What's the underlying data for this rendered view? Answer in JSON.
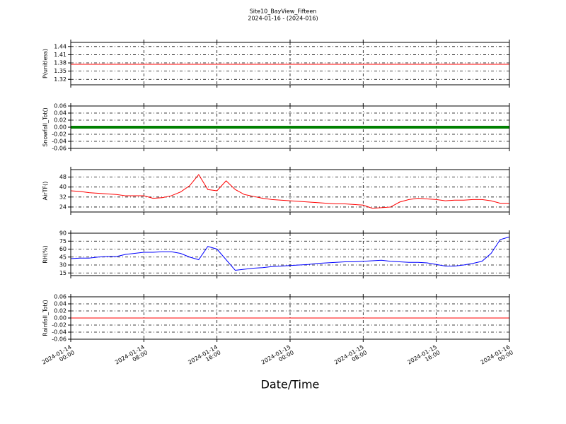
{
  "title": "Site10_BayView_Fifteen",
  "subtitle": "2024-01-16 - (2024-016)",
  "shared_x": {
    "label": "Date/Time",
    "xlim": [
      "2024-01-14 00:00",
      "2024-01-16 00:00"
    ],
    "xticks": [
      {
        "value": "2024-01-14 00:00",
        "label": "2024-01-14\n00:00"
      },
      {
        "value": "2024-01-14 08:00",
        "label": "2024-01-14\n08:00"
      },
      {
        "value": "2024-01-14 16:00",
        "label": "2024-01-14\n16:00"
      },
      {
        "value": "2024-01-15 00:00",
        "label": "2024-01-15\n00:00"
      },
      {
        "value": "2024-01-15 08:00",
        "label": "2024-01-15\n08:00"
      },
      {
        "value": "2024-01-15 16:00",
        "label": "2024-01-15\n16:00"
      },
      {
        "value": "2024-01-16 00:00",
        "label": "2024-01-16\n00:00"
      }
    ]
  },
  "chart_data": [
    {
      "type": "line",
      "ylabel": "P(unitless)",
      "x": [
        "2024-01-14 00:00",
        "2024-01-16 00:00"
      ],
      "series": [
        {
          "color": "#ff0000",
          "width": 1,
          "values": [
            1.375,
            1.375
          ]
        }
      ],
      "ylim": [
        1.3,
        1.455
      ],
      "yticks": [
        1.32,
        1.35,
        1.38,
        1.41,
        1.44
      ],
      "grid": true
    },
    {
      "type": "line",
      "ylabel": "Snowfall_Tot()",
      "x": [
        "2024-01-14 00:00",
        "2024-01-16 00:00"
      ],
      "series": [
        {
          "color": "#008000",
          "width": 4,
          "values": [
            0,
            0
          ]
        }
      ],
      "ylim": [
        -0.06,
        0.06
      ],
      "yticks": [
        -0.06,
        -0.04,
        -0.02,
        {
          "value": 0,
          "label": "0.00"
        },
        0.02,
        0.04,
        0.06
      ],
      "grid": true
    },
    {
      "type": "line",
      "ylabel": "AirTF()",
      "x": [
        "2024-01-14 00:00",
        "2024-01-14 01:00",
        "2024-01-14 02:00",
        "2024-01-14 03:00",
        "2024-01-14 04:00",
        "2024-01-14 05:00",
        "2024-01-14 06:00",
        "2024-01-14 07:00",
        "2024-01-14 08:00",
        "2024-01-14 09:00",
        "2024-01-14 10:00",
        "2024-01-14 11:00",
        "2024-01-14 12:00",
        "2024-01-14 13:00",
        "2024-01-14 14:00",
        "2024-01-14 15:00",
        "2024-01-14 16:00",
        "2024-01-14 17:00",
        "2024-01-14 18:00",
        "2024-01-14 19:00",
        "2024-01-14 20:00",
        "2024-01-14 21:00",
        "2024-01-14 22:00",
        "2024-01-14 23:00",
        "2024-01-15 00:00",
        "2024-01-15 01:00",
        "2024-01-15 02:00",
        "2024-01-15 03:00",
        "2024-01-15 04:00",
        "2024-01-15 05:00",
        "2024-01-15 06:00",
        "2024-01-15 07:00",
        "2024-01-15 08:00",
        "2024-01-15 09:00",
        "2024-01-15 10:00",
        "2024-01-15 11:00",
        "2024-01-15 12:00",
        "2024-01-15 13:00",
        "2024-01-15 14:00",
        "2024-01-15 15:00",
        "2024-01-15 16:00",
        "2024-01-15 17:00",
        "2024-01-15 18:00",
        "2024-01-15 19:00",
        "2024-01-15 20:00",
        "2024-01-15 21:00",
        "2024-01-15 22:00",
        "2024-01-15 23:00",
        "2024-01-16 00:00"
      ],
      "series": [
        {
          "color": "#ff0000",
          "width": 1,
          "values": [
            37,
            36.5,
            35.5,
            35,
            34.5,
            34,
            33,
            33,
            33,
            31,
            31.5,
            33,
            36,
            41,
            50,
            38,
            37,
            45,
            38,
            34,
            32.5,
            31,
            30,
            29.5,
            29,
            28.5,
            28,
            27.5,
            27,
            26.5,
            26.5,
            26,
            25.5,
            23,
            23.5,
            24,
            28,
            30,
            31,
            30.5,
            30,
            29,
            29.5,
            29.5,
            30,
            30,
            29,
            27,
            27
          ]
        }
      ],
      "ylim": [
        20,
        54
      ],
      "yticks": [
        24,
        32,
        40,
        48
      ],
      "grid": true
    },
    {
      "type": "line",
      "ylabel": "RH(%)",
      "x": [
        "2024-01-14 00:00",
        "2024-01-14 01:00",
        "2024-01-14 02:00",
        "2024-01-14 03:00",
        "2024-01-14 04:00",
        "2024-01-14 05:00",
        "2024-01-14 06:00",
        "2024-01-14 07:00",
        "2024-01-14 08:00",
        "2024-01-14 09:00",
        "2024-01-14 10:00",
        "2024-01-14 11:00",
        "2024-01-14 12:00",
        "2024-01-14 13:00",
        "2024-01-14 14:00",
        "2024-01-14 15:00",
        "2024-01-14 16:00",
        "2024-01-14 17:00",
        "2024-01-14 18:00",
        "2024-01-14 19:00",
        "2024-01-14 20:00",
        "2024-01-14 21:00",
        "2024-01-14 22:00",
        "2024-01-14 23:00",
        "2024-01-15 00:00",
        "2024-01-15 01:00",
        "2024-01-15 02:00",
        "2024-01-15 03:00",
        "2024-01-15 04:00",
        "2024-01-15 05:00",
        "2024-01-15 06:00",
        "2024-01-15 07:00",
        "2024-01-15 08:00",
        "2024-01-15 09:00",
        "2024-01-15 10:00",
        "2024-01-15 11:00",
        "2024-01-15 12:00",
        "2024-01-15 13:00",
        "2024-01-15 14:00",
        "2024-01-15 15:00",
        "2024-01-15 16:00",
        "2024-01-15 17:00",
        "2024-01-15 18:00",
        "2024-01-15 19:00",
        "2024-01-15 20:00",
        "2024-01-15 21:00",
        "2024-01-15 22:00",
        "2024-01-15 23:00",
        "2024-01-16 00:00"
      ],
      "series": [
        {
          "color": "#0000ff",
          "width": 1,
          "values": [
            42,
            43,
            43,
            45,
            46,
            46,
            50,
            52,
            54,
            54,
            55,
            55,
            52,
            45,
            40,
            65,
            60,
            40,
            20,
            22,
            24,
            25,
            27,
            28,
            29,
            30,
            31,
            33,
            34,
            35,
            36,
            36,
            37,
            38,
            39,
            37,
            36,
            35,
            35,
            34,
            31,
            28,
            28,
            30,
            33,
            37,
            52,
            78,
            83
          ]
        }
      ],
      "ylim": [
        10,
        90
      ],
      "yticks": [
        15,
        30,
        45,
        60,
        75,
        90
      ],
      "grid": true
    },
    {
      "type": "line",
      "ylabel": "Rainfall_Tot()",
      "x": [
        "2024-01-14 00:00",
        "2024-01-16 00:00"
      ],
      "series": [
        {
          "color": "#ff0000",
          "width": 1,
          "values": [
            0,
            0
          ]
        }
      ],
      "ylim": [
        -0.06,
        0.06
      ],
      "yticks": [
        -0.06,
        -0.04,
        -0.02,
        {
          "value": 0,
          "label": "0.00"
        },
        0.02,
        0.04,
        0.06
      ],
      "grid": true
    }
  ]
}
